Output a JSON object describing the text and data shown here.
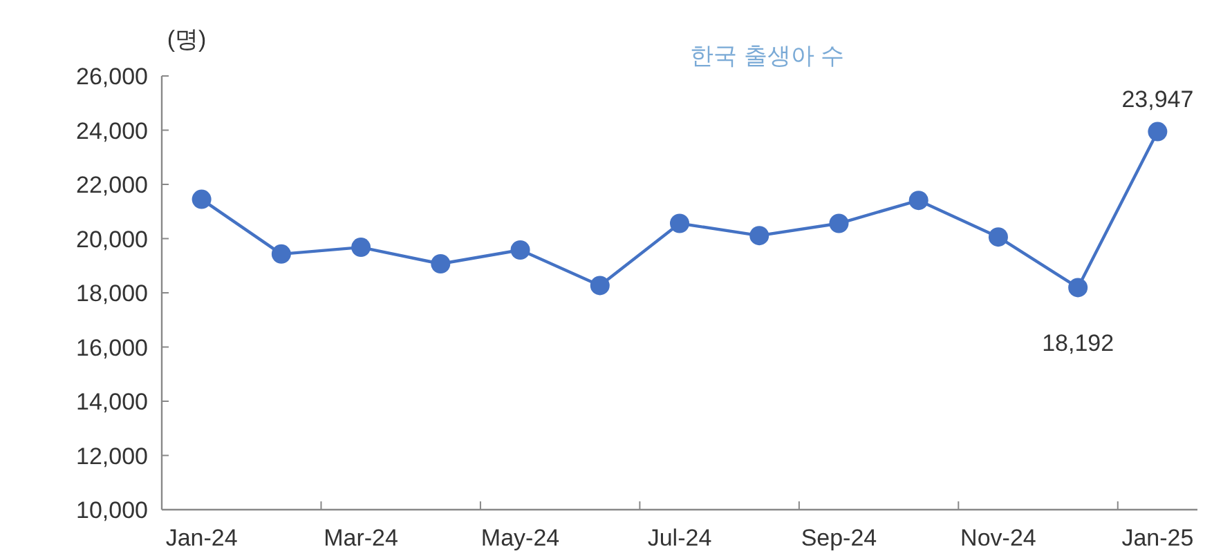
{
  "chart_data": {
    "type": "line",
    "title": "한국 출생아 수",
    "ylabel": "(명)",
    "categories": [
      "Jan-24",
      null,
      "Mar-24",
      null,
      "May-24",
      null,
      "Jul-24",
      null,
      "Sep-24",
      null,
      "Nov-24",
      null,
      "Jan-25"
    ],
    "series": [
      {
        "color": "#4472c4",
        "values": [
          21450,
          19430,
          19680,
          19070,
          19580,
          18270,
          20560,
          20110,
          20560,
          21410,
          20060,
          18192,
          23947
        ]
      }
    ],
    "ylim": [
      10000,
      26000
    ],
    "yticks": [
      {
        "value": 10000,
        "label": "10,000"
      },
      {
        "value": 12000,
        "label": "12,000"
      },
      {
        "value": 14000,
        "label": "14,000"
      },
      {
        "value": 16000,
        "label": "16,000"
      },
      {
        "value": 18000,
        "label": "18,000"
      },
      {
        "value": 20000,
        "label": "20,000"
      },
      {
        "value": 22000,
        "label": "22,000"
      },
      {
        "value": 24000,
        "label": "24,000"
      },
      {
        "value": 26000,
        "label": "26,000"
      }
    ],
    "grid": false,
    "marker": "circle",
    "line_style": "solid",
    "annotations": [
      {
        "text": "23,947",
        "x": "Jan-25",
        "y": 23947
      },
      {
        "text": "18,192",
        "y": 18192
      }
    ]
  }
}
